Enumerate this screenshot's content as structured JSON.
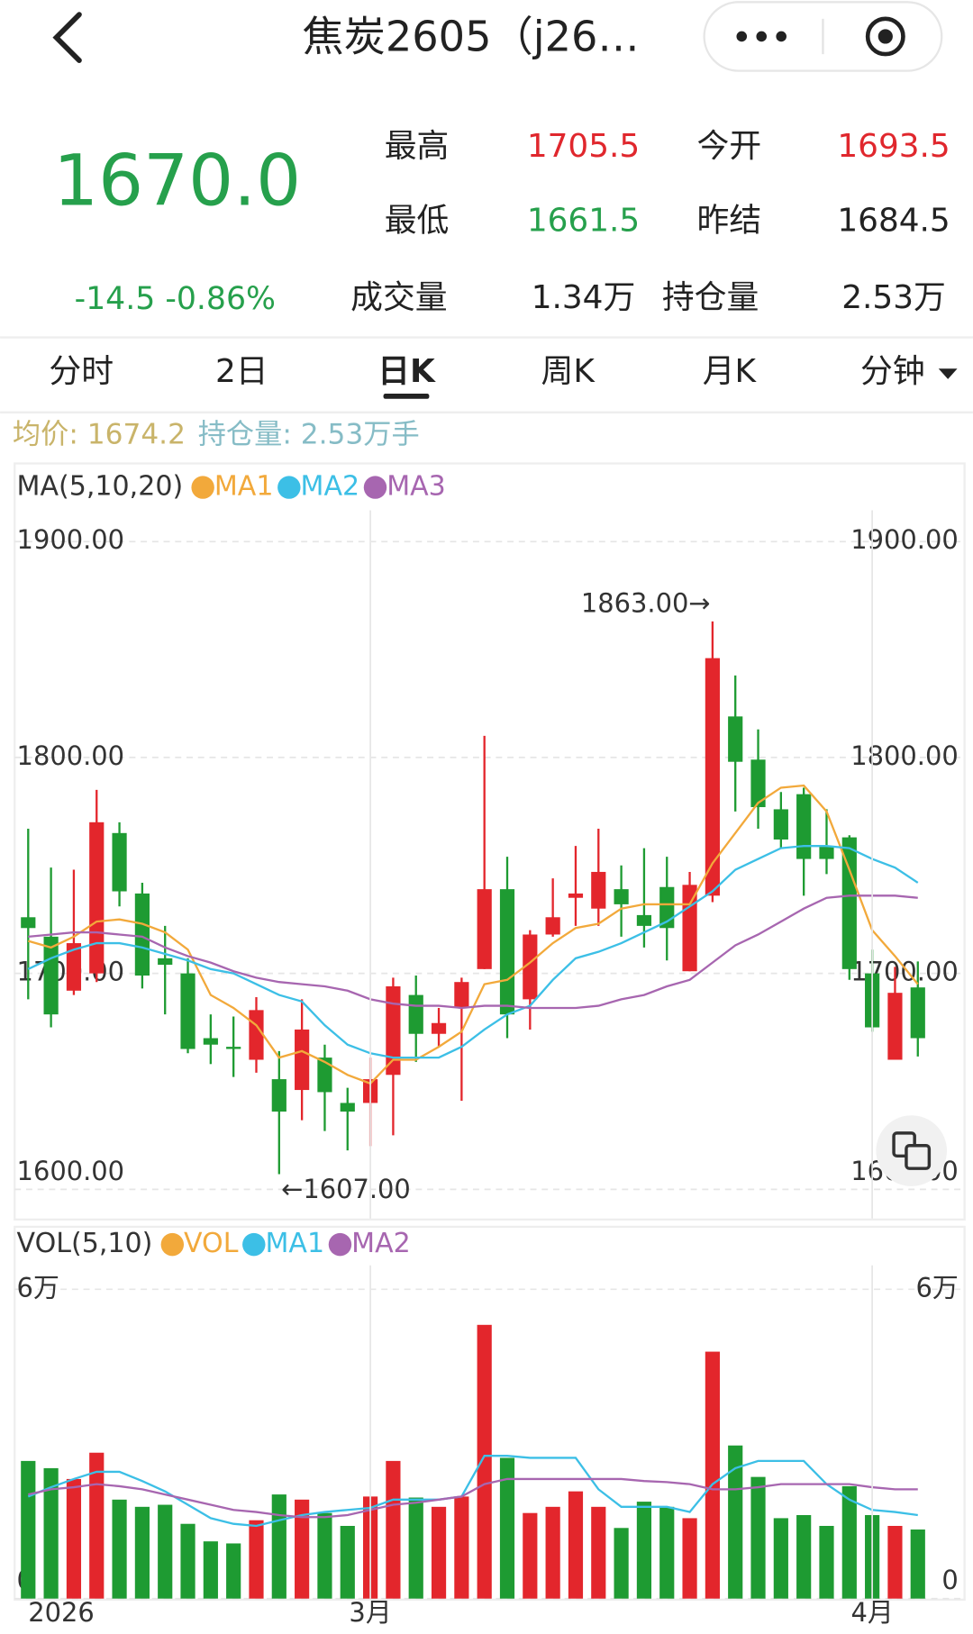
{
  "header": {
    "title": "焦炭2605（j26…",
    "price": "1670.0",
    "change": "-14.5 -0.86%",
    "stats": [
      {
        "label": "最高",
        "value": "1705.5"
      },
      {
        "label": "今开",
        "value": "1693.5"
      },
      {
        "label": "最低",
        "value": "1661.5"
      },
      {
        "label": "昨结",
        "value": "1684.5"
      },
      {
        "label": "成交量",
        "value": "1.34万"
      },
      {
        "label": "持仓量",
        "value": "2.53万"
      }
    ]
  },
  "tabs": [
    "分时",
    "2日",
    "日K",
    "周K",
    "月K",
    "分钟"
  ],
  "info": {
    "avg": "均价: 1674.2",
    "oi": "持仓量: 2.53万手"
  },
  "chart_data": [
    {
      "type": "candlestick",
      "legend_title": "MA(5,10,20)",
      "up_color": "#e3262c",
      "down_color": "#1e9b32",
      "open": [
        1726,
        1717,
        1692,
        1700,
        1765,
        1737,
        1707,
        1700,
        1670,
        1666,
        1660,
        1651,
        1646,
        1661,
        1640,
        1640,
        1653,
        1690,
        1672,
        1684,
        1702,
        1739,
        1688,
        1718,
        1735,
        1730,
        1739,
        1727,
        1740,
        1701,
        1736,
        1819,
        1799,
        1776,
        1783,
        1759,
        1763,
        1700,
        1660,
        1693.5
      ],
      "high": [
        1767,
        1749,
        1748,
        1785,
        1770,
        1742,
        1722,
        1707,
        1681,
        1680,
        1689,
        1664,
        1688,
        1667,
        1647,
        1661,
        1698,
        1699,
        1684,
        1698,
        1810,
        1754,
        1720,
        1744,
        1759,
        1767,
        1750,
        1758,
        1754,
        1747,
        1863,
        1838,
        1813,
        1784,
        1786,
        1776,
        1764,
        1711,
        1703,
        1705.5
      ],
      "low": [
        1688,
        1675,
        1690,
        1696,
        1731,
        1693,
        1681,
        1663,
        1658,
        1652,
        1654,
        1607,
        1632,
        1627,
        1618,
        1620,
        1625,
        1659,
        1666,
        1641,
        1702,
        1670,
        1674,
        1717,
        1722,
        1722,
        1717,
        1712,
        1706,
        1701,
        1733,
        1775,
        1767,
        1758,
        1736,
        1746,
        1697,
        1673,
        1660,
        1661.5
      ],
      "close": [
        1721,
        1681,
        1714,
        1770,
        1738,
        1699,
        1704,
        1665,
        1667,
        1665,
        1683,
        1636,
        1674,
        1645,
        1636,
        1651,
        1694,
        1672,
        1677,
        1696,
        1739,
        1681,
        1718,
        1726,
        1737,
        1747,
        1732,
        1722,
        1721,
        1741,
        1846,
        1798,
        1777,
        1762,
        1753,
        1753,
        1702,
        1675,
        1691,
        1670
      ],
      "series": [
        {
          "name": "MA1",
          "color": "#f2a93b",
          "values": [
            1715,
            1712,
            1717,
            1724,
            1725,
            1723,
            1719,
            1711,
            1690,
            1684,
            1676,
            1661,
            1664,
            1659,
            1653,
            1649,
            1660,
            1660,
            1666,
            1673,
            1695,
            1697,
            1705,
            1714,
            1721,
            1723,
            1730,
            1732,
            1732,
            1732,
            1751,
            1765,
            1779,
            1786,
            1787,
            1775,
            1748,
            1720,
            1708,
            1695
          ]
        },
        {
          "name": "MA2",
          "color": "#3cbfe6",
          "values": [
            1702,
            1707,
            1711,
            1714,
            1714,
            1712,
            1709,
            1706,
            1702,
            1700,
            1695,
            1690,
            1687,
            1676,
            1667,
            1663,
            1661,
            1661,
            1661,
            1666,
            1674,
            1681,
            1685,
            1697,
            1707,
            1710,
            1714,
            1719,
            1724,
            1731,
            1738,
            1748,
            1753,
            1758,
            1759,
            1759,
            1758,
            1753,
            1749,
            1742
          ]
        },
        {
          "name": "MA3",
          "color": "#a766b0",
          "values": [
            1717,
            1718,
            1719,
            1719,
            1718,
            1717,
            1712,
            1708,
            1705,
            1701,
            1698,
            1696,
            1695,
            1694,
            1692,
            1688,
            1686,
            1685,
            1685,
            1684,
            1685,
            1685,
            1684,
            1684,
            1684,
            1685,
            1688,
            1690,
            1694,
            1697,
            1705,
            1713,
            1718,
            1724,
            1730,
            1735,
            1736,
            1736,
            1736,
            1735
          ]
        }
      ],
      "ylim": [
        1600,
        1900
      ],
      "yticks": [
        {
          "value": 1600,
          "label": "1600.00"
        },
        {
          "value": 1700,
          "label": "1700.00"
        },
        {
          "value": 1800,
          "label": "1800.00"
        },
        {
          "value": 1900,
          "label": "1900.00"
        }
      ],
      "grid": true,
      "annotations": [
        {
          "text": "1863.00→",
          "value": 1863
        },
        {
          "text": "←1607.00",
          "value": 1607
        }
      ]
    },
    {
      "type": "bar",
      "legend_title": "VOL(5,10)",
      "name": "VOL",
      "color": "#f2a93b",
      "categories": [
        "2026",
        null,
        null,
        null,
        null,
        null,
        null,
        null,
        null,
        null,
        null,
        null,
        null,
        null,
        null,
        "3月",
        null,
        null,
        null,
        null,
        null,
        null,
        null,
        null,
        null,
        null,
        null,
        null,
        null,
        null,
        null,
        null,
        null,
        null,
        null,
        null,
        null,
        "4月",
        null,
        null
      ],
      "values": [
        2.67,
        2.53,
        2.32,
        2.83,
        1.92,
        1.78,
        1.82,
        1.45,
        1.11,
        1.07,
        1.52,
        2.02,
        1.92,
        1.66,
        1.41,
        1.98,
        2.67,
        1.96,
        1.78,
        1.98,
        5.31,
        2.73,
        1.66,
        1.78,
        2.08,
        1.78,
        1.37,
        1.88,
        1.78,
        1.56,
        4.79,
        2.97,
        2.36,
        1.56,
        1.62,
        1.41,
        2.18,
        1.62,
        1.41,
        1.34
      ],
      "series": [
        {
          "name": "MA1",
          "color": "#3cbfe6",
          "values": [
            1.98,
            2.16,
            2.32,
            2.46,
            2.46,
            2.28,
            2.08,
            1.82,
            1.56,
            1.45,
            1.41,
            1.52,
            1.62,
            1.68,
            1.72,
            1.76,
            1.92,
            1.92,
            1.92,
            1.98,
            2.77,
            2.77,
            2.73,
            2.73,
            2.73,
            2.12,
            1.78,
            1.78,
            1.78,
            1.68,
            2.22,
            2.53,
            2.67,
            2.67,
            2.67,
            2.22,
            1.92,
            1.72,
            1.68,
            1.62
          ]
        },
        {
          "name": "MA2",
          "color": "#a766b0",
          "values": [
            2.02,
            2.12,
            2.16,
            2.22,
            2.18,
            2.12,
            2.02,
            1.92,
            1.82,
            1.72,
            1.68,
            1.62,
            1.58,
            1.58,
            1.62,
            1.72,
            1.82,
            1.86,
            1.92,
            1.98,
            2.22,
            2.32,
            2.32,
            2.32,
            2.32,
            2.32,
            2.32,
            2.28,
            2.26,
            2.22,
            2.12,
            2.12,
            2.16,
            2.22,
            2.22,
            2.22,
            2.22,
            2.16,
            2.12,
            2.12
          ]
        }
      ],
      "ylim": [
        0,
        6
      ],
      "yticks": [
        0,
        {
          "value": 6,
          "label": "6万"
        }
      ],
      "grid": true
    }
  ]
}
